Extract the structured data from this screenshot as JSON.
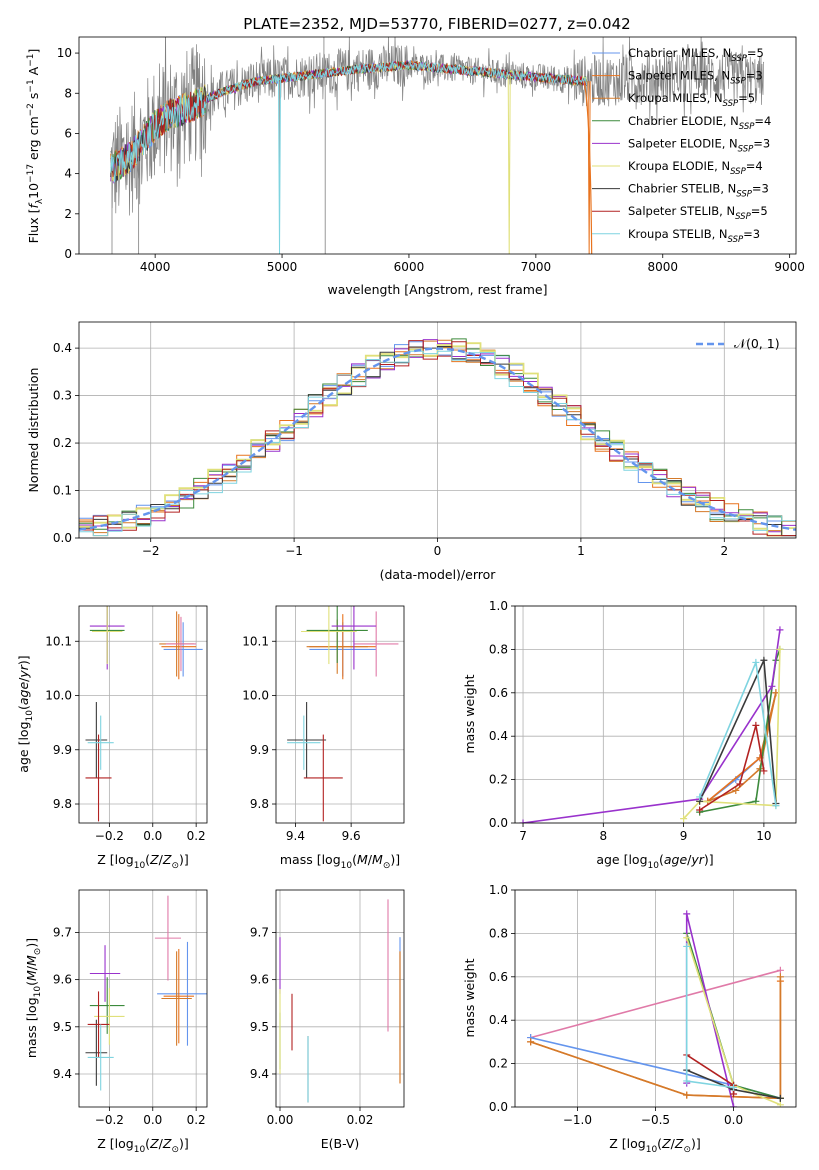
{
  "title": "PLATE=2352, MJD=53770, FIBERID=0277, z=0.042",
  "colors": [
    "#6495ed",
    "#e8731e",
    "#d47a2a",
    "#3c8a3c",
    "#9932cc",
    "#e0e07a",
    "#3a3a3a",
    "#b22222",
    "#7fd4e0"
  ],
  "spectrum_color": "#808080",
  "normal_color": "#6495ed",
  "pink": "#e07aa8",
  "chart_data": [
    {
      "id": "spectrum",
      "type": "line",
      "xlabel": "wavelength [Angstrom, rest frame]",
      "ylabel": "Flux [f_λ 10^-17 erg cm^-2 s^-1 A^-1]",
      "xlim": [
        3400,
        9050
      ],
      "ylim": [
        0,
        10.8
      ],
      "xticks": [
        4000,
        5000,
        6000,
        7000,
        8000,
        9000
      ],
      "yticks": [
        0,
        2,
        4,
        6,
        8,
        10
      ],
      "legend_position": "top-right",
      "series": [
        {
          "name": "Chabrier MILES, N_SSP=5"
        },
        {
          "name": "Salpeter MILES, N_SSP=3"
        },
        {
          "name": "Kroupa MILES, N_SSP=5"
        },
        {
          "name": "Chabrier ELODIE, N_SSP=4"
        },
        {
          "name": "Salpeter ELODIE, N_SSP=3"
        },
        {
          "name": "Kroupa ELODIE, N_SSP=4"
        },
        {
          "name": "Chabrier STELIB, N_SSP=3"
        },
        {
          "name": "Salpeter STELIB, N_SSP=5"
        },
        {
          "name": "Kroupa STELIB, N_SSP=3"
        }
      ],
      "legend_text": [
        [
          "Chabrier MILES, N",
          "SSP",
          "=5"
        ],
        [
          "Salpeter MILES, N",
          "SSP",
          "=3"
        ],
        [
          "Kroupa MILES, N",
          "SSP",
          "=5"
        ],
        [
          "Chabrier ELODIE, N",
          "SSP",
          "=4"
        ],
        [
          "Salpeter ELODIE, N",
          "SSP",
          "=3"
        ],
        [
          "Kroupa ELODIE, N",
          "SSP",
          "=4"
        ],
        [
          "Chabrier STELIB, N",
          "SSP",
          "=3"
        ],
        [
          "Salpeter STELIB, N",
          "SSP",
          "=5"
        ],
        [
          "Kroupa STELIB, N",
          "SSP",
          "=3"
        ]
      ],
      "continuum": [
        [
          3650,
          4.2
        ],
        [
          3800,
          4.8
        ],
        [
          3900,
          5.6
        ],
        [
          4000,
          6.4
        ],
        [
          4100,
          6.9
        ],
        [
          4300,
          7.4
        ],
        [
          4500,
          8.0
        ],
        [
          4800,
          8.6
        ],
        [
          5200,
          8.9
        ],
        [
          5600,
          9.2
        ],
        [
          6000,
          9.4
        ],
        [
          6500,
          9.1
        ],
        [
          7000,
          8.8
        ],
        [
          7400,
          8.6
        ],
        [
          7800,
          8.7
        ],
        [
          8200,
          8.9
        ],
        [
          8600,
          8.8
        ],
        [
          8800,
          8.6
        ]
      ],
      "data_range": [
        3650,
        8800
      ],
      "model_range": [
        3650,
        7400
      ],
      "dips": [
        {
          "x": 4980,
          "series": "all"
        },
        {
          "x": 6790,
          "series": 5
        },
        {
          "x": 7420,
          "series": 1
        }
      ]
    },
    {
      "id": "residuals",
      "type": "line",
      "xlabel": "(data-model)/error",
      "ylabel": "Normed distribution",
      "xlim": [
        -2.5,
        2.5
      ],
      "ylim": [
        0,
        0.455
      ],
      "xticks": [
        -2,
        -1,
        0,
        1,
        2
      ],
      "yticks": [
        0.0,
        0.1,
        0.2,
        0.3,
        0.4
      ],
      "legend_position": "top-right",
      "normal_label": "𝒩(0, 1)",
      "bin_width": 0.1,
      "x_start": -2.5
    },
    {
      "id": "age_vs_Z",
      "type": "scatter",
      "xlabel": "Z [log10(Z/Z☉)]",
      "ylabel": "age [log10(age/yr)]",
      "xlim": [
        -0.34,
        0.25
      ],
      "ylim": [
        9.765,
        10.165
      ],
      "xticks": [
        -0.2,
        0.0,
        0.2
      ],
      "yticks": [
        9.8,
        9.9,
        10.0,
        10.1
      ],
      "points": [
        {
          "x": 0.14,
          "y": 10.085,
          "xerr": 0.09,
          "yerr": 0.05
        },
        {
          "x": 0.12,
          "y": 10.09,
          "xerr": 0.08,
          "yerr": 0.06
        },
        {
          "x": 0.11,
          "y": 10.095,
          "xerr": 0.08,
          "yerr": 0.06
        },
        {
          "x": -0.21,
          "y": 10.12,
          "xerr": 0.08,
          "yerr": 0.06
        },
        {
          "x": -0.21,
          "y": 10.128,
          "xerr": 0.08,
          "yerr": 0.08
        },
        {
          "x": -0.21,
          "y": 10.118,
          "xerr": 0.07,
          "yerr": 0.06
        },
        {
          "x": -0.26,
          "y": 9.918,
          "xerr": 0.05,
          "yerr": 0.07
        },
        {
          "x": -0.25,
          "y": 9.848,
          "xerr": 0.06,
          "yerr": 0.08
        },
        {
          "x": -0.24,
          "y": 9.913,
          "xerr": 0.06,
          "yerr": 0.05
        }
      ],
      "pink_point": {
        "x": 0.13,
        "y": 10.095,
        "xerr": 0.07,
        "yerr": 0.05
      }
    },
    {
      "id": "age_vs_mass",
      "type": "scatter",
      "xlabel": "mass [log10(M/M☉)]",
      "ylabel": "",
      "xlim": [
        9.33,
        9.79
      ],
      "ylim": [
        9.765,
        10.165
      ],
      "xticks": [
        9.4,
        9.6
      ],
      "yticks": [
        9.8,
        9.9,
        10.0,
        10.1
      ],
      "points": [
        {
          "x": 9.57,
          "y": 10.085,
          "xerr": 0.12,
          "yerr": 0.05
        },
        {
          "x": 9.57,
          "y": 10.09,
          "xerr": 0.12,
          "yerr": 0.06
        },
        {
          "x": 9.55,
          "y": 10.09,
          "xerr": 0.11,
          "yerr": 0.05
        },
        {
          "x": 9.55,
          "y": 10.12,
          "xerr": 0.11,
          "yerr": 0.06
        },
        {
          "x": 9.61,
          "y": 10.128,
          "xerr": 0.08,
          "yerr": 0.08
        },
        {
          "x": 9.52,
          "y": 10.118,
          "xerr": 0.1,
          "yerr": 0.06
        },
        {
          "x": 9.44,
          "y": 9.918,
          "xerr": 0.07,
          "yerr": 0.07
        },
        {
          "x": 9.5,
          "y": 9.848,
          "xerr": 0.07,
          "yerr": 0.08
        },
        {
          "x": 9.43,
          "y": 9.913,
          "xerr": 0.06,
          "yerr": 0.05
        }
      ],
      "pink_point": {
        "x": 9.69,
        "y": 10.095,
        "xerr": 0.08,
        "yerr": 0.06
      }
    },
    {
      "id": "mw_vs_age",
      "type": "line",
      "xlabel": "age [log10(age/yr)]",
      "ylabel": "mass weight",
      "xlim": [
        6.9,
        10.4
      ],
      "ylim": [
        0,
        1.0
      ],
      "xticks": [
        7,
        8,
        9,
        10
      ],
      "yticks": [
        0.0,
        0.2,
        0.4,
        0.6,
        0.8,
        1.0
      ],
      "series": [
        {
          "x": [
            9.3,
            9.65,
            9.95,
            10.15
          ],
          "y": [
            0.1,
            0.2,
            0.3,
            0.6
          ]
        },
        {
          "x": [
            9.3,
            9.95,
            10.15
          ],
          "y": [
            0.1,
            0.3,
            0.6
          ]
        },
        {
          "x": [
            9.3,
            9.65,
            9.95,
            10.15
          ],
          "y": [
            0.1,
            0.15,
            0.25,
            0.6
          ]
        },
        {
          "x": [
            9.2,
            9.9,
            10.15,
            10.2
          ],
          "y": [
            0.05,
            0.1,
            0.75,
            0.8
          ]
        },
        {
          "x": [
            7.0,
            9.2,
            10.1,
            10.2
          ],
          "y": [
            0.0,
            0.11,
            0.63,
            0.89
          ]
        },
        {
          "x": [
            9.0,
            9.2,
            10.15,
            10.2
          ],
          "y": [
            0.02,
            0.1,
            0.08,
            0.8
          ]
        },
        {
          "x": [
            9.2,
            10.0,
            10.15
          ],
          "y": [
            0.1,
            0.75,
            0.09
          ]
        },
        {
          "x": [
            9.2,
            9.7,
            9.9,
            10.0
          ],
          "y": [
            0.06,
            0.18,
            0.45,
            0.24
          ]
        },
        {
          "x": [
            9.2,
            9.9,
            10.15
          ],
          "y": [
            0.12,
            0.74,
            0.08
          ]
        }
      ]
    },
    {
      "id": "mass_vs_Z",
      "type": "scatter",
      "xlabel": "Z [log10(Z/Z☉)]",
      "ylabel": "mass [log10(M/M☉)]",
      "xlim": [
        -0.34,
        0.25
      ],
      "ylim": [
        9.33,
        9.79
      ],
      "xticks": [
        -0.2,
        0.0,
        0.2
      ],
      "yticks": [
        9.4,
        9.5,
        9.6,
        9.7
      ],
      "points": [
        {
          "x": 0.16,
          "y": 9.57,
          "xerr": 0.14,
          "yerr": 0.11
        },
        {
          "x": 0.12,
          "y": 9.565,
          "xerr": 0.07,
          "yerr": 0.1
        },
        {
          "x": 0.11,
          "y": 9.56,
          "xerr": 0.07,
          "yerr": 0.1
        },
        {
          "x": -0.21,
          "y": 9.545,
          "xerr": 0.08,
          "yerr": 0.06
        },
        {
          "x": -0.22,
          "y": 9.613,
          "xerr": 0.07,
          "yerr": 0.06
        },
        {
          "x": -0.2,
          "y": 9.522,
          "xerr": 0.07,
          "yerr": 0.06
        },
        {
          "x": -0.26,
          "y": 9.445,
          "xerr": 0.05,
          "yerr": 0.07
        },
        {
          "x": -0.25,
          "y": 9.505,
          "xerr": 0.05,
          "yerr": 0.07
        },
        {
          "x": -0.24,
          "y": 9.435,
          "xerr": 0.06,
          "yerr": 0.07
        }
      ],
      "pink_point": {
        "x": 0.07,
        "y": 9.688,
        "xerr": 0.06,
        "yerr": 0.09
      }
    },
    {
      "id": "mass_vs_EBV",
      "type": "scatter",
      "xlabel": "E(B-V)",
      "ylabel": "",
      "xlim": [
        -0.001,
        0.031
      ],
      "ylim": [
        9.33,
        9.79
      ],
      "xticks": [
        0.0,
        0.02
      ],
      "xtick_labels": [
        "0.00",
        "0.02"
      ],
      "yticks": [
        9.4,
        9.5,
        9.6,
        9.7
      ],
      "points": [
        {
          "x": 0.03,
          "y": 9.57,
          "yerr": 0.12
        },
        {
          "x": 0.03,
          "y": 9.52,
          "yerr": 0.14
        },
        {
          "x": 0.03,
          "y": 9.52,
          "yerr": 0.14
        },
        {
          "x": 0.0,
          "y": 9.47,
          "yerr": 0.06
        },
        {
          "x": 0.0,
          "y": 9.63,
          "yerr": 0.06
        },
        {
          "x": 0.0,
          "y": 9.49,
          "yerr": 0.09
        },
        {
          "x": 0.007,
          "y": 9.41,
          "yerr": 0.07
        },
        {
          "x": 0.003,
          "y": 9.51,
          "yerr": 0.06
        },
        {
          "x": 0.007,
          "y": 9.41,
          "yerr": 0.07
        }
      ],
      "pink_point": {
        "x": 0.027,
        "y": 9.63,
        "yerr": 0.14
      }
    },
    {
      "id": "mw_vs_Z",
      "type": "line",
      "xlabel": "Z [log10(Z/Z☉)]",
      "ylabel": "mass weight",
      "xlim": [
        -1.4,
        0.4
      ],
      "ylim": [
        0,
        1.0
      ],
      "xticks": [
        -1.0,
        -0.5,
        0.0
      ],
      "xtick_labels": [
        "−1.0",
        "−0.5",
        "0.0"
      ],
      "yticks": [
        0.0,
        0.2,
        0.4,
        0.6,
        0.8,
        1.0
      ],
      "series": [
        {
          "x": [
            -1.3,
            0.0,
            0.3
          ],
          "y": [
            0.32,
            0.1,
            0.04
          ]
        },
        {
          "x": [
            -1.3,
            -0.3,
            0.3,
            0.3
          ],
          "y": [
            0.3,
            0.055,
            0.04,
            0.58
          ]
        },
        {
          "x": [
            -1.3,
            -0.3,
            0.3,
            0.3
          ],
          "y": [
            0.3,
            0.055,
            0.04,
            0.6
          ]
        },
        {
          "x": [
            -0.3,
            0.0,
            0.3
          ],
          "y": [
            0.8,
            0.1,
            0.04
          ]
        },
        {
          "x": [
            -0.3,
            -0.3,
            0.0
          ],
          "y": [
            0.11,
            0.89,
            0.0
          ]
        },
        {
          "x": [
            -0.3,
            0.0,
            0.3
          ],
          "y": [
            0.78,
            0.1,
            0.01
          ]
        },
        {
          "x": [
            -0.3,
            0.0,
            0.3
          ],
          "y": [
            0.17,
            0.08,
            0.04
          ]
        },
        {
          "x": [
            -0.3,
            0.0,
            0.0
          ],
          "y": [
            0.24,
            0.1,
            0.06
          ]
        },
        {
          "x": [
            -0.3,
            -0.3,
            0.0
          ],
          "y": [
            0.74,
            0.12,
            0.09
          ]
        }
      ],
      "pink_series": {
        "x": [
          -1.3,
          0.3
        ],
        "y": [
          0.32,
          0.63
        ]
      }
    }
  ]
}
